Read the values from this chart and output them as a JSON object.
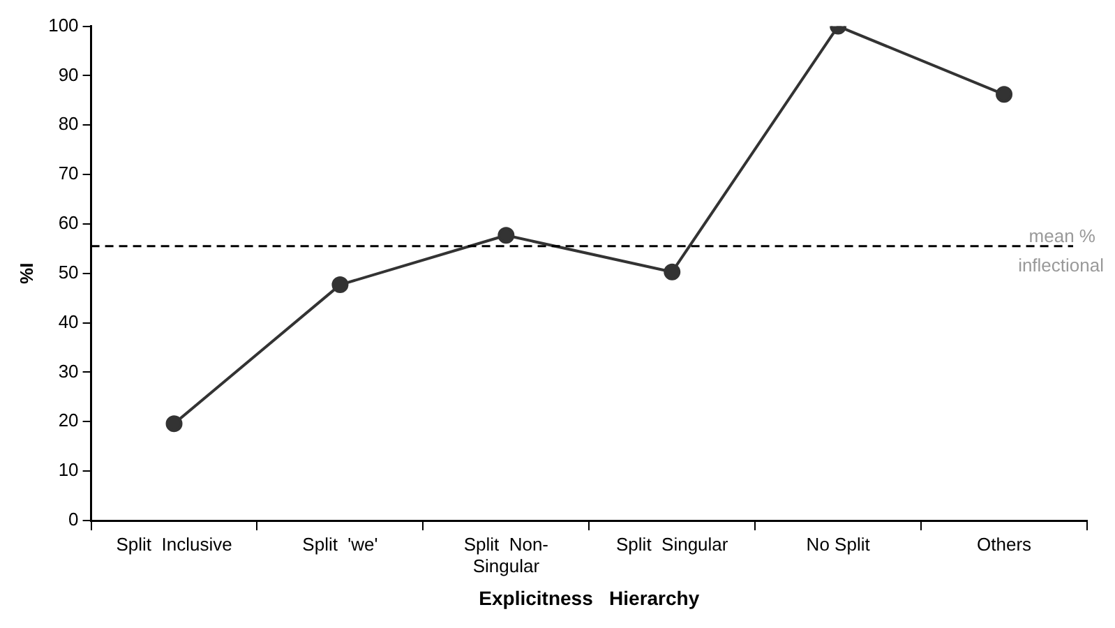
{
  "chart_data": {
    "type": "line",
    "xlabel": "Explicitness   Hierarchy",
    "ylabel": "%I",
    "categories": [
      "Split  Inclusive",
      "Split  'we'",
      "Split  Non-Singular",
      "Split  Singular",
      "No Split",
      "Others"
    ],
    "series": [
      {
        "color": "#333333",
        "values": [
          19.6,
          47.7,
          57.7,
          50.3,
          100,
          86.2
        ]
      }
    ],
    "ylim": [
      0,
      100
    ],
    "yticks": [
      0,
      10,
      20,
      30,
      40,
      50,
      60,
      70,
      80,
      90,
      100
    ],
    "ref_lines": [
      {
        "axis": "y",
        "value": 55.5,
        "label": "mean % inflectional",
        "color": "#000000",
        "line_style": "dashed"
      }
    ],
    "grid": false,
    "legend": false,
    "marker": "circle",
    "line_style": "solid"
  }
}
